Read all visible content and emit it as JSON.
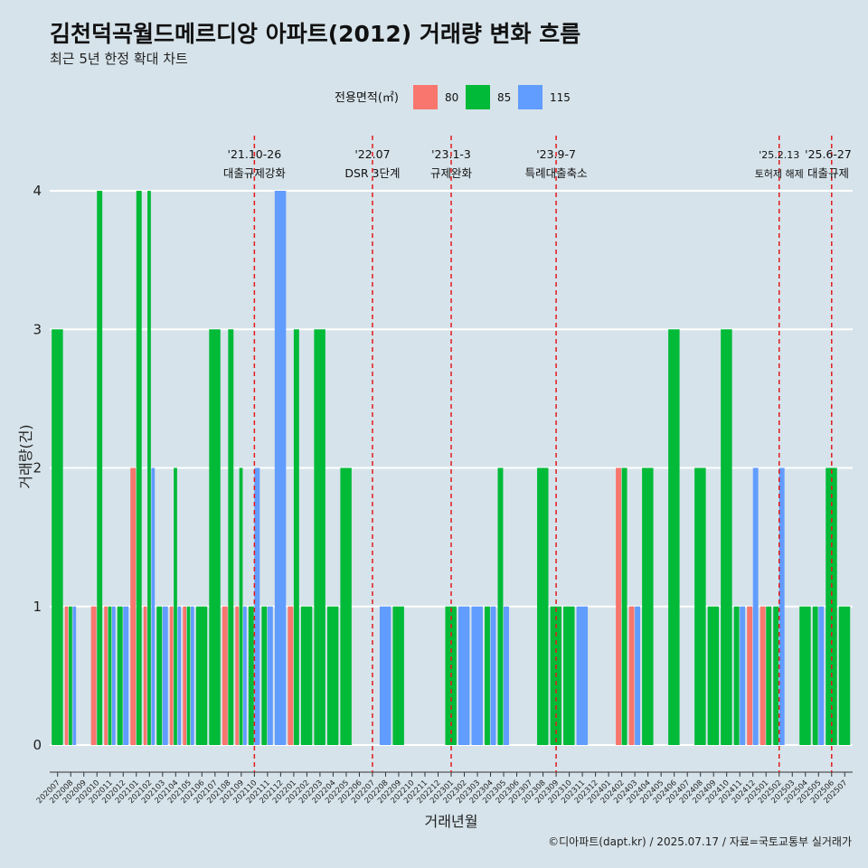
{
  "title": "김천덕곡월드메르디앙 아파트(2012) 거래량 변화 흐름",
  "subtitle": "최근 5년 한정 확대 차트",
  "caption": "©디아파트(dapt.kr) / 2025.07.17 / 자료=국토교통부 실거래가",
  "colors": {
    "80": "#f8766d",
    "85": "#00ba38",
    "115": "#619cff",
    "event": "#e31a1c"
  },
  "chart_data": {
    "type": "bar",
    "xlabel": "거래년월",
    "ylabel": "거래량(건)",
    "ylim": [
      0,
      4
    ],
    "yticks": [
      0,
      1,
      2,
      3,
      4
    ],
    "grid": true,
    "legend_title": "전용면적(㎡)",
    "legend_position": "top",
    "categories": [
      "202007",
      "202008",
      "202009",
      "202010",
      "202011",
      "202012",
      "202101",
      "202102",
      "202103",
      "202104",
      "202105",
      "202106",
      "202107",
      "202108",
      "202109",
      "202110",
      "202111",
      "202112",
      "202201",
      "202202",
      "202203",
      "202204",
      "202205",
      "202206",
      "202207",
      "202208",
      "202209",
      "202210",
      "202211",
      "202212",
      "202301",
      "202302",
      "202303",
      "202304",
      "202305",
      "202306",
      "202307",
      "202308",
      "202309",
      "202310",
      "202311",
      "202312",
      "202401",
      "202402",
      "202403",
      "202404",
      "202405",
      "202406",
      "202407",
      "202408",
      "202409",
      "202410",
      "202411",
      "202412",
      "202501",
      "202502",
      "202503",
      "202504",
      "202505",
      "202506",
      "202507"
    ],
    "series": [
      {
        "name": "80",
        "values": [
          0,
          1,
          0,
          1,
          1,
          0,
          2,
          1,
          0,
          1,
          1,
          0,
          0,
          1,
          1,
          0,
          0,
          0,
          1,
          0,
          0,
          0,
          0,
          0,
          0,
          0,
          0,
          0,
          0,
          0,
          0,
          0,
          0,
          0,
          0,
          0,
          0,
          0,
          0,
          0,
          0,
          0,
          0,
          2,
          1,
          0,
          0,
          0,
          0,
          0,
          0,
          0,
          0,
          1,
          1,
          0,
          0,
          0,
          0,
          0,
          0
        ]
      },
      {
        "name": "85",
        "values": [
          3,
          1,
          0,
          4,
          1,
          1,
          4,
          4,
          1,
          2,
          1,
          1,
          3,
          3,
          2,
          1,
          1,
          0,
          3,
          1,
          3,
          1,
          2,
          0,
          0,
          0,
          1,
          0,
          0,
          0,
          1,
          0,
          0,
          1,
          2,
          0,
          0,
          2,
          1,
          1,
          0,
          0,
          0,
          2,
          0,
          2,
          0,
          3,
          0,
          2,
          1,
          3,
          1,
          0,
          1,
          1,
          0,
          1,
          1,
          2,
          1
        ]
      },
      {
        "name": "115",
        "values": [
          0,
          1,
          0,
          0,
          1,
          1,
          0,
          2,
          1,
          1,
          1,
          0,
          0,
          0,
          1,
          2,
          1,
          4,
          0,
          0,
          0,
          0,
          0,
          0,
          0,
          1,
          0,
          0,
          0,
          0,
          0,
          1,
          1,
          1,
          1,
          0,
          0,
          0,
          0,
          0,
          1,
          0,
          0,
          0,
          1,
          0,
          0,
          0,
          0,
          0,
          0,
          0,
          1,
          2,
          0,
          2,
          0,
          0,
          1,
          0,
          0
        ]
      }
    ],
    "events": [
      {
        "date_label": "'21.10-26",
        "label": "대출규제강화",
        "x": "202110"
      },
      {
        "date_label": "'22.07",
        "label": "DSR 3단계",
        "x": "202207"
      },
      {
        "date_label": "'23.1-3",
        "label": "규제완화",
        "x": "202301"
      },
      {
        "date_label": "'23.9-7",
        "label": "특례대출축소",
        "x": "202309"
      },
      {
        "date_label": "'25.2.13",
        "label": "토허제 해제",
        "x": "202502"
      },
      {
        "date_label": "'25.6-27",
        "label": "대출규제",
        "x": "202506"
      }
    ]
  }
}
